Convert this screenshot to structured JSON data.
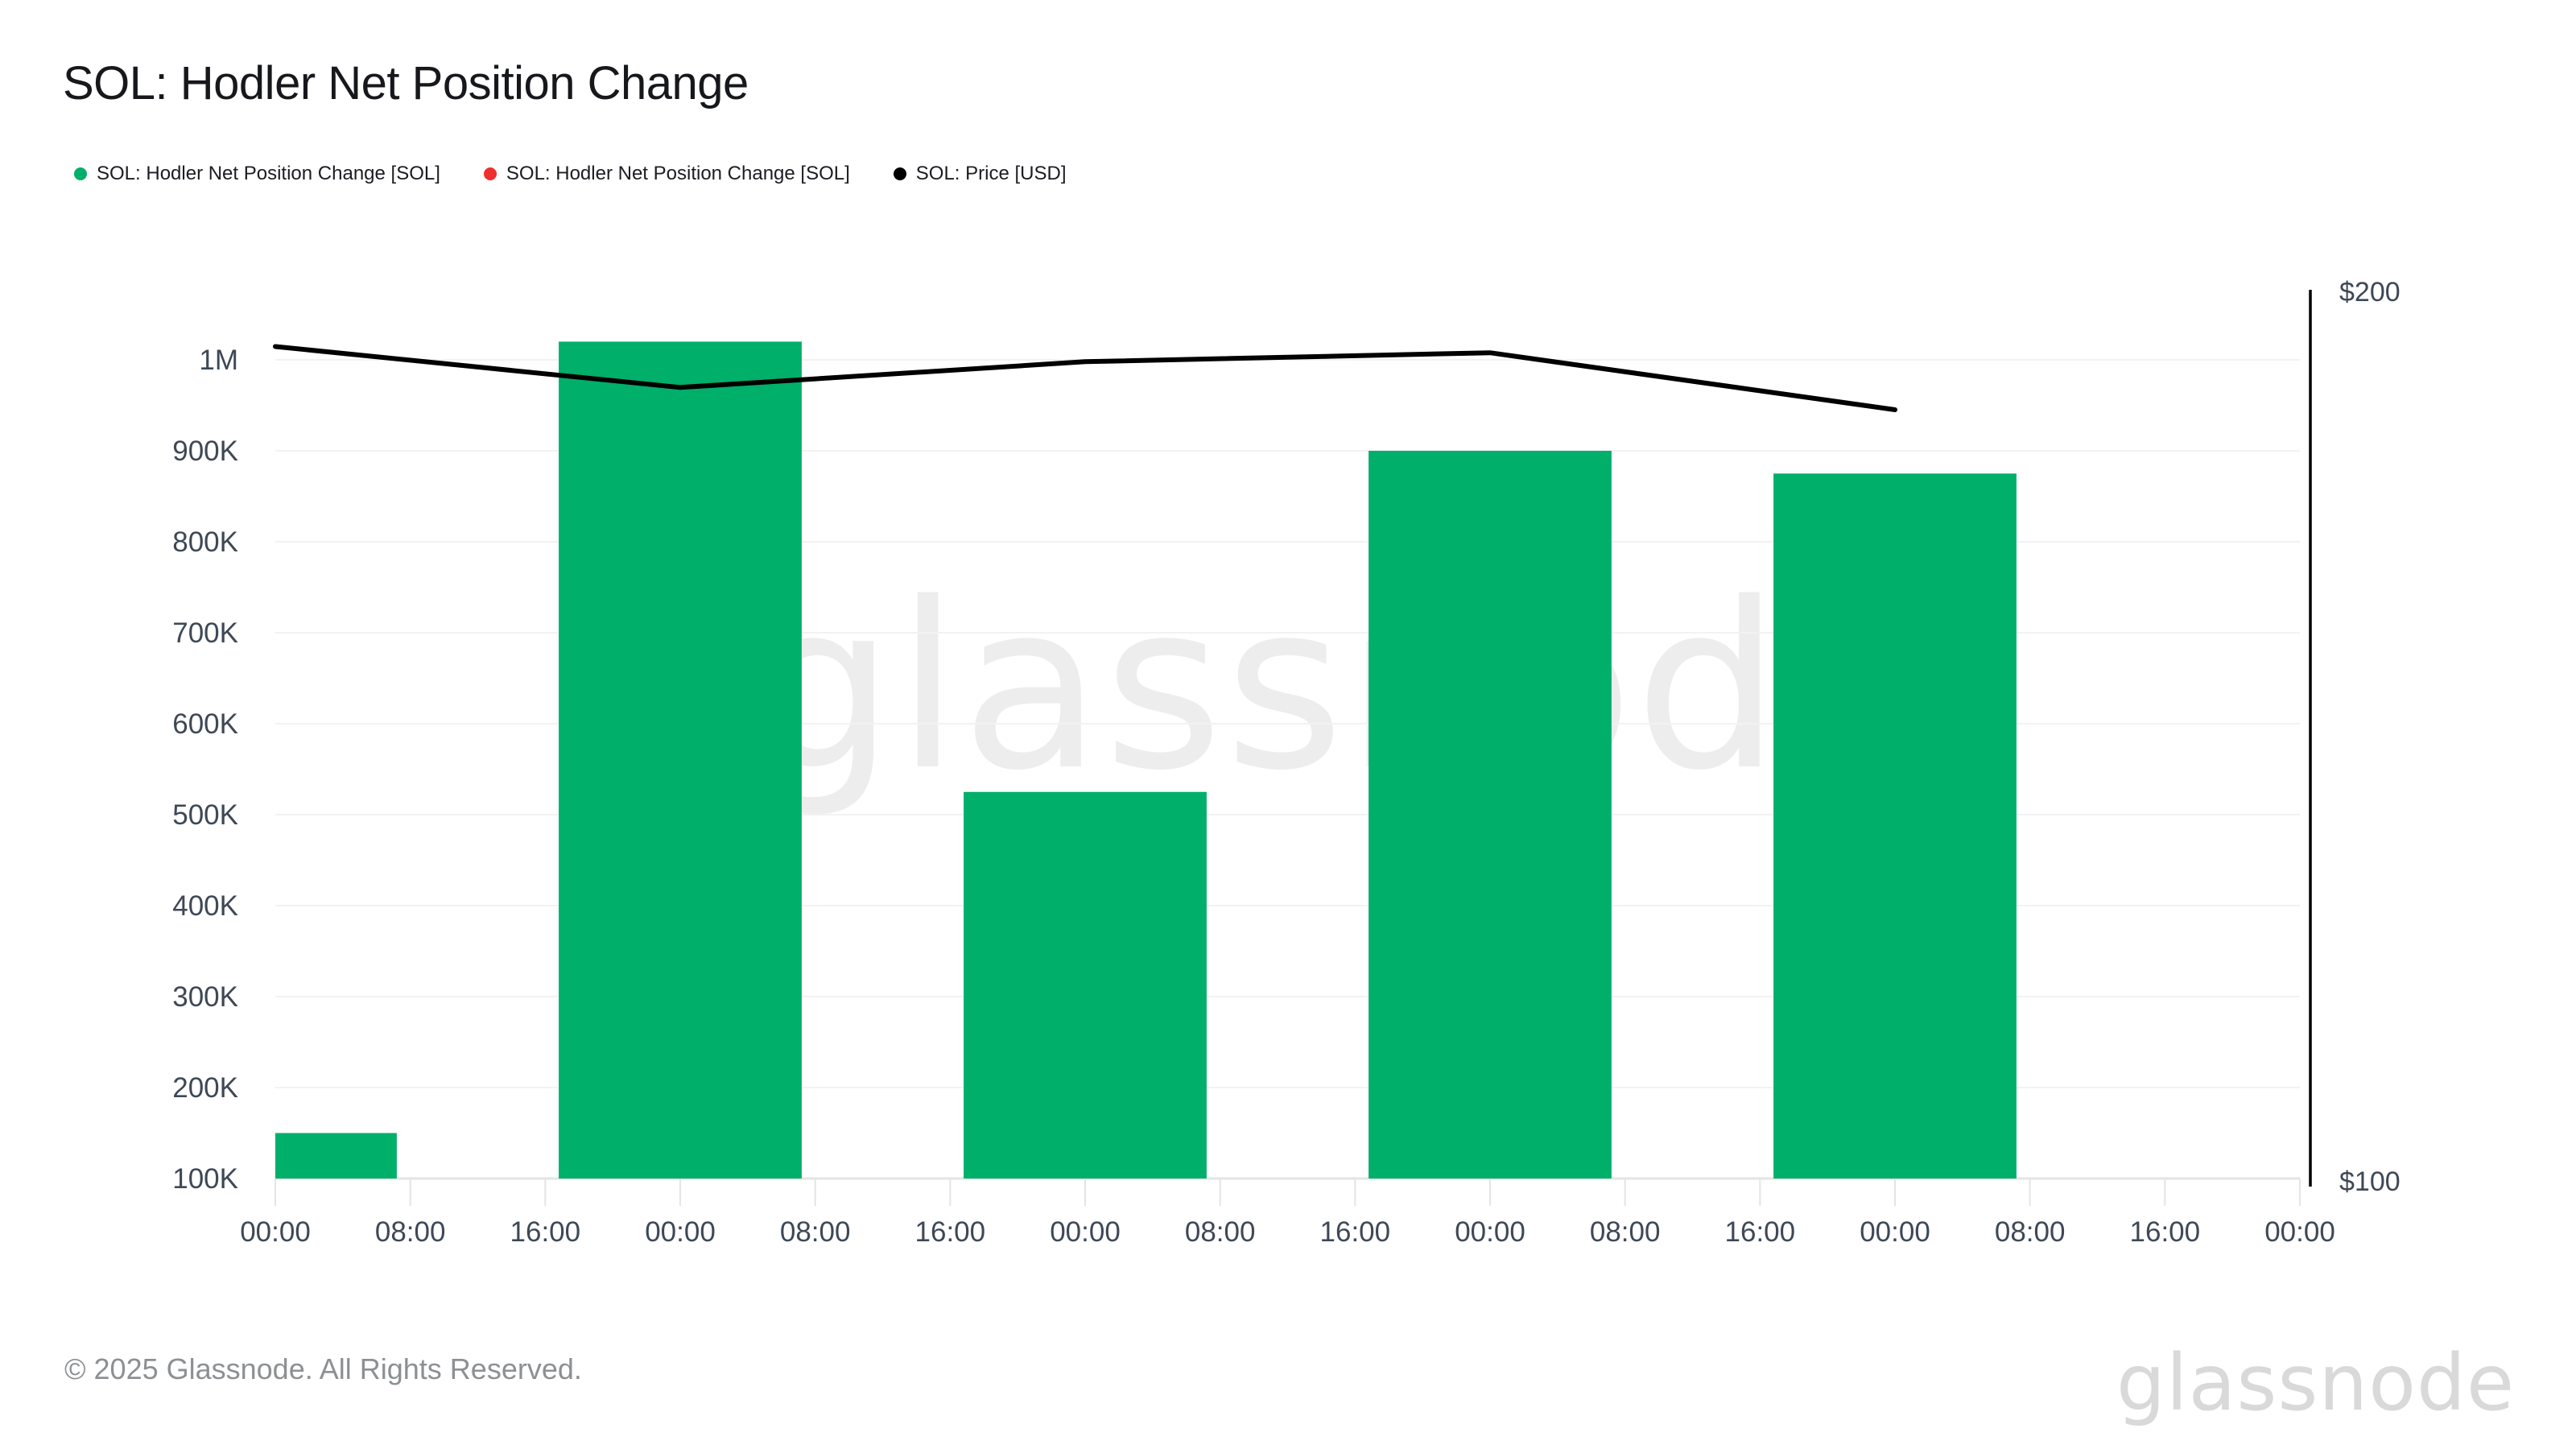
{
  "header": {
    "title": "SOL: Hodler Net Position Change"
  },
  "legend": {
    "items": [
      {
        "label": "SOL: Hodler Net Position Change [SOL]",
        "color": "#00af6a"
      },
      {
        "label": "SOL: Hodler Net Position Change [SOL]",
        "color": "#ef2e2e"
      },
      {
        "label": "SOL: Price [USD]",
        "color": "#000000"
      }
    ]
  },
  "chart_data": {
    "type": "mixed-bar-line",
    "title": "SOL: Hodler Net Position Change",
    "grid": "horizontal-only",
    "legend_position": "top-left",
    "colors": {
      "bar": "#00af6a",
      "price_line": "#000000",
      "gridline": "#f2f2f2",
      "axis_line": "#e4e4e4",
      "tick_text": "#3e4856",
      "price_axis": "#000000"
    },
    "x_axis": {
      "unit": "hours",
      "range_hours": [
        0,
        120
      ],
      "tick_interval_hours": 8,
      "tick_labels": [
        "00:00",
        "08:00",
        "16:00",
        "00:00",
        "08:00",
        "16:00",
        "00:00",
        "08:00",
        "16:00",
        "00:00",
        "08:00",
        "16:00",
        "00:00",
        "08:00",
        "16:00",
        "00:00"
      ]
    },
    "left_axis": {
      "min": 100000,
      "max": 1000000,
      "tick_step": 100000,
      "tick_labels_top_to_bottom": [
        "1M",
        "900K",
        "800K",
        "700K",
        "600K",
        "500K",
        "400K",
        "300K",
        "200K",
        "100K"
      ]
    },
    "right_axis": {
      "min": 100,
      "max": 200,
      "top_label": "$200",
      "bottom_label": "$100"
    },
    "series": [
      {
        "name": "SOL: Hodler Net Position Change [SOL]",
        "type": "bar",
        "axis": "left",
        "color": "#00af6a",
        "bar_width_hours": 14.4,
        "points": [
          {
            "hour": 0,
            "value": 150000
          },
          {
            "hour": 24,
            "value": 1020000
          },
          {
            "hour": 48,
            "value": 525000
          },
          {
            "hour": 72,
            "value": 900000
          },
          {
            "hour": 96,
            "value": 875000
          }
        ]
      },
      {
        "name": "SOL: Price [USD]",
        "type": "line",
        "axis": "right",
        "color": "#000000",
        "points": [
          {
            "hour": 0,
            "value": 193.8
          },
          {
            "hour": 24,
            "value": 189.2
          },
          {
            "hour": 48,
            "value": 192.1
          },
          {
            "hour": 72,
            "value": 193.1
          },
          {
            "hour": 96,
            "value": 186.7
          }
        ]
      }
    ]
  },
  "watermark": {
    "text": "glassnode"
  },
  "footer": {
    "copyright": "© 2025 Glassnode. All Rights Reserved.",
    "logo_text": "glassnode"
  }
}
